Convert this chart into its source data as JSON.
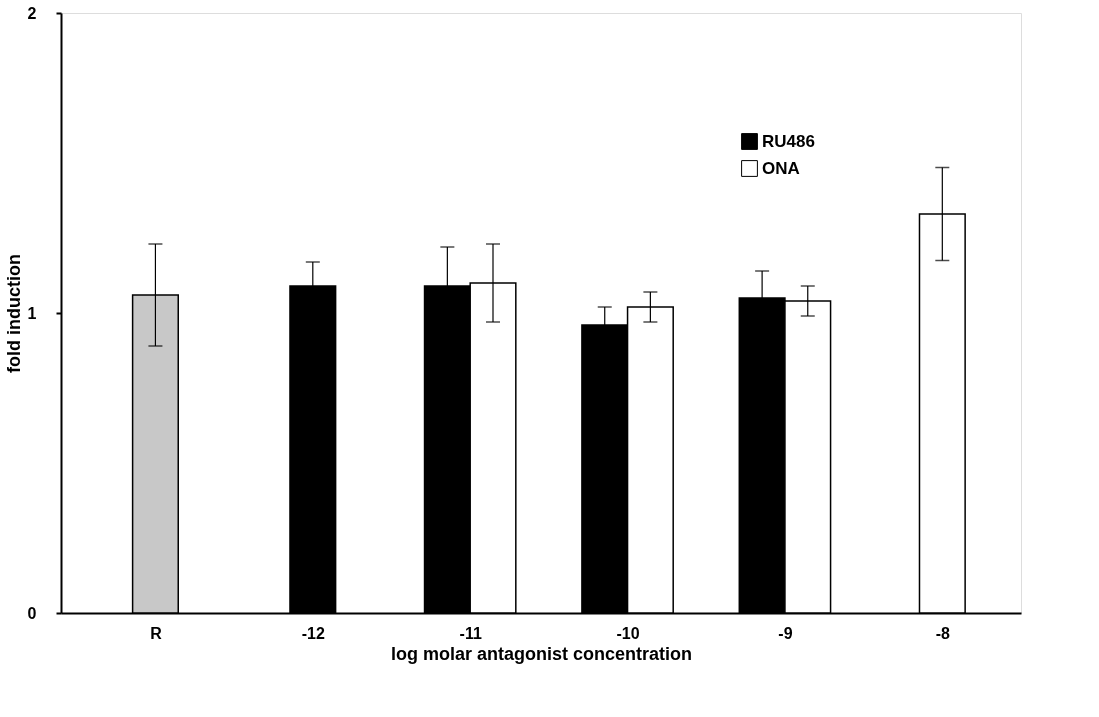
{
  "chart_data": {
    "type": "bar",
    "xlabel": "log molar antagonist concentration",
    "ylabel": "fold induction",
    "categories": [
      "R",
      "-12",
      "-11",
      "-10",
      "-9",
      "-8"
    ],
    "series": [
      {
        "color": "#c8c8c8",
        "values": [
          1.06,
          null,
          null,
          null,
          null,
          null
        ],
        "errors": [
          0.17,
          null,
          null,
          null,
          null,
          null
        ]
      },
      {
        "name": "RU486",
        "color": "#000000",
        "values": [
          null,
          1.09,
          1.09,
          0.96,
          1.05,
          null
        ],
        "errors": [
          null,
          0.08,
          0.13,
          0.06,
          0.09,
          null
        ]
      },
      {
        "name": "ONA",
        "color": "#ffffff",
        "values": [
          null,
          null,
          1.1,
          1.02,
          1.04,
          1.33
        ],
        "errors": [
          null,
          null,
          0.13,
          0.05,
          0.05,
          0.155
        ]
      }
    ],
    "ylim": [
      0,
      2
    ],
    "yticks": [
      0,
      1,
      2
    ],
    "grid": false,
    "legend": "top right"
  }
}
